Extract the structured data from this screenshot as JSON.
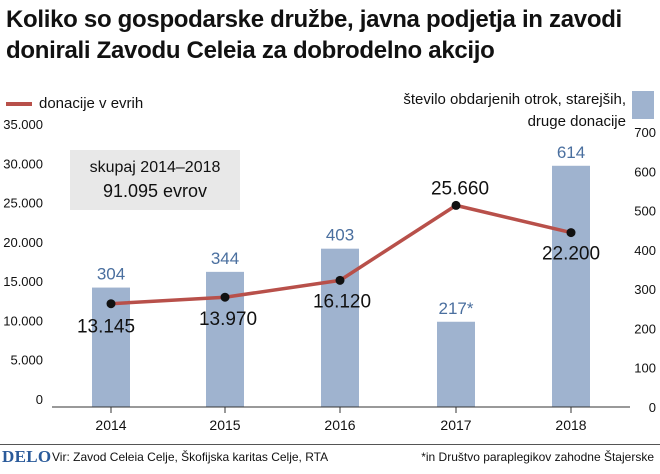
{
  "title": "Koliko so gospodarske družbe, javna podjetja in zavodi donirali Zavodu Celeia za dobrodelno akcijo",
  "legend": {
    "line_label": "donacije v evrih",
    "bars_label_line1": "število obdarjenih otrok, starejših,",
    "bars_label_line2": "druge donacije"
  },
  "summary": {
    "label": "skupaj 2014–2018",
    "value": "91.095 evrov"
  },
  "footer": {
    "logo": "DELO",
    "source": "Vir: Zavod Celeia Celje, Škofijska karitas Celje, RTA",
    "note": "*in Društvo paraplegikov zahodne Štajerske"
  },
  "colors": {
    "bar": "#9fb3cf",
    "bar_label": "#4a6f9f",
    "line": "#b8504a",
    "summary_box": "#e8e8e8"
  },
  "chart_data": {
    "type": "bar",
    "categories": [
      "2014",
      "2015",
      "2016",
      "2017",
      "2018"
    ],
    "series": [
      {
        "type": "bar",
        "axis": "right",
        "values": [
          304,
          344,
          403,
          217,
          614
        ],
        "labels": [
          "304",
          "344",
          "403",
          "217*",
          "614"
        ]
      },
      {
        "type": "line",
        "axis": "left",
        "values": [
          13145,
          13970,
          16120,
          25660,
          22200
        ],
        "labels": [
          "13.145",
          "13.970",
          "16.120",
          "25.660",
          "22.200"
        ]
      }
    ],
    "y_left": {
      "min": 0,
      "max": 35000,
      "ticks": [
        "0",
        "5.000",
        "10.000",
        "15.000",
        "20.000",
        "25.000",
        "30.000",
        "35.000"
      ]
    },
    "y_right": {
      "min": 0,
      "max": 700,
      "ticks": [
        "0",
        "100",
        "200",
        "300",
        "400",
        "500",
        "600",
        "700"
      ]
    },
    "grid": false
  }
}
